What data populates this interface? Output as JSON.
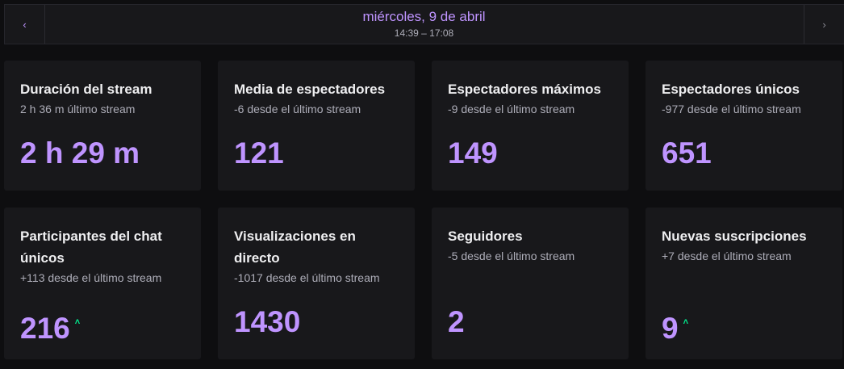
{
  "header": {
    "prev_icon": "chevron-left-icon",
    "next_icon": "chevron-right-icon",
    "prev_glyph": "‹",
    "next_glyph": "›",
    "date": "miércoles, 9 de abril",
    "time_range": "14:39 – 17:08"
  },
  "colors": {
    "accent": "#bf94ff",
    "trend_up": "#00f593",
    "card_bg": "#18181b",
    "page_bg": "#0e0e10"
  },
  "cards": [
    {
      "title": "Duración del stream",
      "subtitle": "2 h 36 m último stream",
      "value": "2 h 29 m",
      "trend": ""
    },
    {
      "title": "Media de espectadores",
      "subtitle": "-6 desde el último stream",
      "value": "121",
      "trend": ""
    },
    {
      "title": "Espectadores máximos",
      "subtitle": "-9 desde el último stream",
      "value": "149",
      "trend": ""
    },
    {
      "title": "Espectadores únicos",
      "subtitle": "-977 desde el último stream",
      "value": "651",
      "trend": ""
    },
    {
      "title": "Participantes del chat únicos",
      "subtitle": "+113 desde el último stream",
      "value": "216",
      "trend": "up"
    },
    {
      "title": "Visualizaciones en directo",
      "subtitle": "-1017 desde el último stream",
      "value": "1430",
      "trend": ""
    },
    {
      "title": "Seguidores",
      "subtitle": "-5 desde el último stream",
      "value": "2",
      "trend": ""
    },
    {
      "title": "Nuevas suscripciones",
      "subtitle": "+7 desde el último stream",
      "value": "9",
      "trend": "up"
    }
  ],
  "trend_glyph": "˄"
}
